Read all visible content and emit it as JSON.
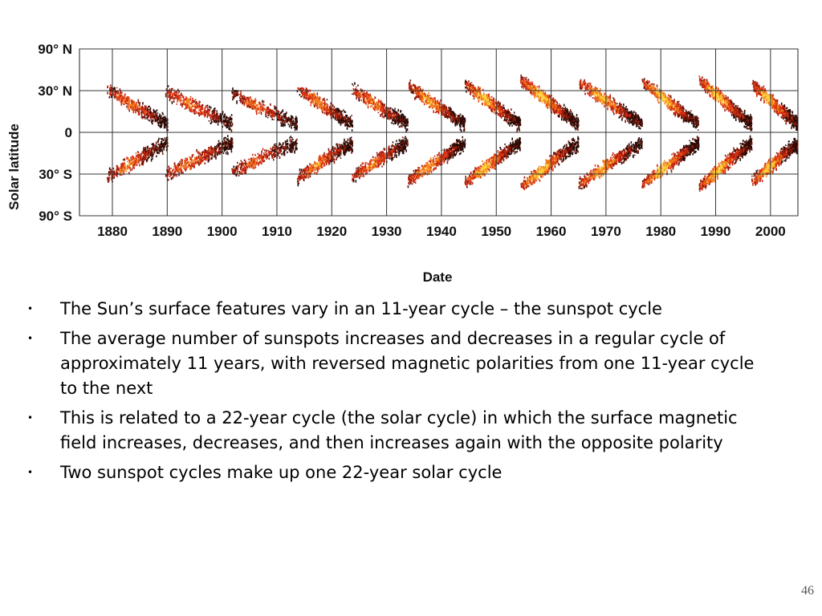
{
  "slide": {
    "page_number": "46",
    "bullets": [
      "The Sun’s surface features vary in an 11-year cycle – the sunspot cycle",
      "The average number of sunspots increases and decreases in a regular cycle of approximately 11 years, with reversed magnetic polarities from one 11-year cycle to the next",
      "This is related to a 22-year cycle (the solar cycle) in which the surface magnetic field increases, decreases, and then increases again with the opposite polarity",
      "Two sunspot cycles make up one 22-year solar cycle"
    ]
  },
  "chart_data": {
    "type": "scatter",
    "title": "",
    "xlabel": "Date",
    "ylabel": "Solar latitude",
    "xlim": [
      1874,
      2005
    ],
    "ylim": [
      -90,
      90
    ],
    "x_ticks": [
      "1880",
      "1890",
      "1900",
      "1910",
      "1920",
      "1930",
      "1940",
      "1950",
      "1960",
      "1970",
      "1980",
      "1990",
      "2000"
    ],
    "y_ticks": [
      {
        "value": 90,
        "label": "90° N"
      },
      {
        "value": 30,
        "label": "30° N"
      },
      {
        "value": 0,
        "label": "0"
      },
      {
        "value": -30,
        "label": "30° S"
      },
      {
        "value": -90,
        "label": "90° S"
      }
    ],
    "grid": true,
    "colors": [
      "#2b0a05",
      "#8b1a0a",
      "#d62d10",
      "#f07a1a",
      "#ffd23a"
    ],
    "cycles": [
      {
        "start": 1878.9,
        "end": 1890.0,
        "max_latitude": 32,
        "strength": 0.7
      },
      {
        "start": 1889.6,
        "end": 1901.8,
        "max_latitude": 30,
        "strength": 0.7
      },
      {
        "start": 1901.7,
        "end": 1913.6,
        "max_latitude": 28,
        "strength": 0.6
      },
      {
        "start": 1913.6,
        "end": 1923.7,
        "max_latitude": 33,
        "strength": 0.75
      },
      {
        "start": 1923.6,
        "end": 1933.8,
        "max_latitude": 32,
        "strength": 0.75
      },
      {
        "start": 1933.8,
        "end": 1944.2,
        "max_latitude": 35,
        "strength": 0.85
      },
      {
        "start": 1944.2,
        "end": 1954.3,
        "max_latitude": 36,
        "strength": 0.95
      },
      {
        "start": 1954.3,
        "end": 1964.9,
        "max_latitude": 40,
        "strength": 1.0
      },
      {
        "start": 1964.9,
        "end": 1976.5,
        "max_latitude": 38,
        "strength": 0.9
      },
      {
        "start": 1976.5,
        "end": 1986.8,
        "max_latitude": 38,
        "strength": 1.0
      },
      {
        "start": 1986.8,
        "end": 1996.5,
        "max_latitude": 40,
        "strength": 1.0
      },
      {
        "start": 1996.5,
        "end": 2005.0,
        "max_latitude": 36,
        "strength": 0.95
      }
    ]
  }
}
